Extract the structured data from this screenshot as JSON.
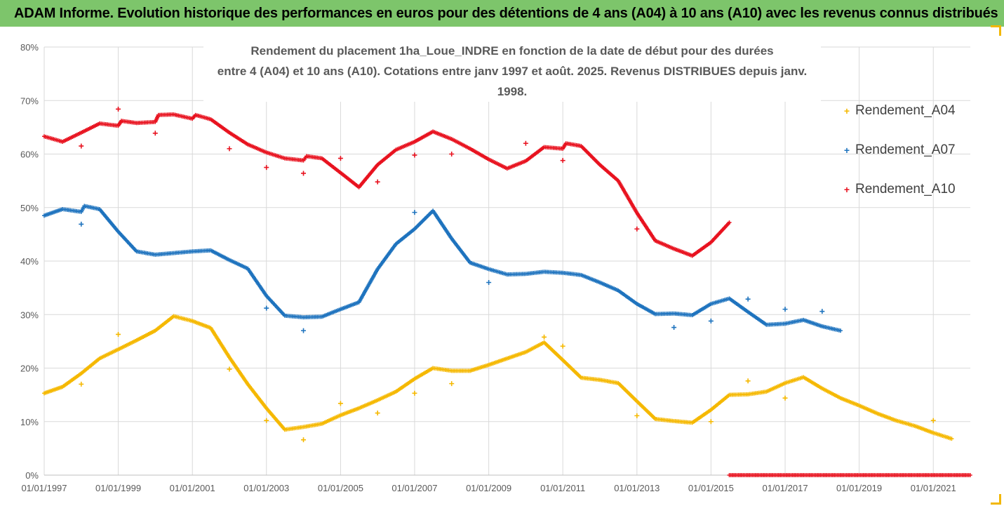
{
  "banner": {
    "title": "ADAM Informe. Evolution historique des performances en euros pour des détentions de 4 ans (A04) à 10 ans (A10) avec les revenus connus distribués"
  },
  "colors": {
    "banner_bg": "#7dc56b",
    "corner": "#f2b705",
    "A04": "#f5b800",
    "A07": "#1e73be",
    "A10": "#e8121f",
    "grid": "#d9d9d9"
  },
  "chart_data": {
    "type": "scatter",
    "title_line1": "Rendement du placement 1ha_Loue_INDRE en fonction de la date de début pour des durées",
    "title_line2": "entre 4 (A04) et 10 ans (A10). Cotations entre janv 1997 et août. 2025. Revenus DISTRIBUES depuis janv. 1998.",
    "xlabel": "",
    "ylabel": "",
    "x_range": [
      "1997-01-01",
      "2022-01-01"
    ],
    "y_range": [
      0,
      80
    ],
    "y_ticks": [
      0,
      10,
      20,
      30,
      40,
      50,
      60,
      70,
      80
    ],
    "y_tick_labels": [
      "0%",
      "10%",
      "20%",
      "30%",
      "40%",
      "50%",
      "60%",
      "70%",
      "80%"
    ],
    "x_ticks": [
      "1997-01-01",
      "1999-01-01",
      "2001-01-01",
      "2003-01-01",
      "2005-01-01",
      "2007-01-01",
      "2009-01-01",
      "2011-01-01",
      "2013-01-01",
      "2015-01-01",
      "2017-01-01",
      "2019-01-01",
      "2021-01-01"
    ],
    "x_tick_labels": [
      "01/01/1997",
      "01/01/1999",
      "01/01/2001",
      "01/01/2003",
      "01/01/2005",
      "01/01/2007",
      "01/01/2009",
      "01/01/2011",
      "01/01/2013",
      "01/01/2015",
      "01/01/2017",
      "01/01/2019",
      "01/01/2021"
    ],
    "grid": "horizontal",
    "legend_position": "right",
    "series": [
      {
        "name": "Rendement_A04",
        "color": "#f5b800",
        "points": [
          [
            "1997-01-01",
            15.3
          ],
          [
            "1997-07-01",
            16.5
          ],
          [
            "1998-01-01",
            19.0
          ],
          [
            "1998-07-01",
            21.8
          ],
          [
            "1999-01-01",
            23.5
          ],
          [
            "1999-07-01",
            25.2
          ],
          [
            "2000-01-01",
            27.0
          ],
          [
            "2000-07-01",
            29.7
          ],
          [
            "2001-01-01",
            28.8
          ],
          [
            "2001-07-01",
            27.5
          ],
          [
            "2002-01-01",
            22.0
          ],
          [
            "2002-07-01",
            17.0
          ],
          [
            "2003-01-01",
            12.5
          ],
          [
            "2003-07-01",
            8.5
          ],
          [
            "2004-01-01",
            9.0
          ],
          [
            "2004-07-01",
            9.6
          ],
          [
            "2005-01-01",
            11.2
          ],
          [
            "2005-07-01",
            12.5
          ],
          [
            "2006-01-01",
            14.0
          ],
          [
            "2006-07-01",
            15.6
          ],
          [
            "2007-01-01",
            18.0
          ],
          [
            "2007-07-01",
            20.0
          ],
          [
            "2008-01-01",
            19.5
          ],
          [
            "2008-07-01",
            19.5
          ],
          [
            "2009-01-01",
            20.6
          ],
          [
            "2009-07-01",
            21.8
          ],
          [
            "2010-01-01",
            23.0
          ],
          [
            "2010-07-01",
            24.8
          ],
          [
            "2011-01-01",
            21.5
          ],
          [
            "2011-07-01",
            18.2
          ],
          [
            "2012-01-01",
            17.8
          ],
          [
            "2012-07-01",
            17.2
          ],
          [
            "2013-01-01",
            13.8
          ],
          [
            "2013-07-01",
            10.5
          ],
          [
            "2014-01-01",
            10.1
          ],
          [
            "2014-07-01",
            9.8
          ],
          [
            "2015-01-01",
            12.2
          ],
          [
            "2015-07-01",
            15.0
          ],
          [
            "2016-01-01",
            15.1
          ],
          [
            "2016-07-01",
            15.6
          ],
          [
            "2017-01-01",
            17.2
          ],
          [
            "2017-07-01",
            18.3
          ],
          [
            "2018-01-01",
            16.2
          ],
          [
            "2018-07-01",
            14.4
          ],
          [
            "2019-01-01",
            13.0
          ],
          [
            "2019-07-01",
            11.5
          ],
          [
            "2020-01-01",
            10.2
          ],
          [
            "2020-07-01",
            9.2
          ],
          [
            "2021-01-01",
            7.9
          ],
          [
            "2021-07-01",
            6.8
          ]
        ],
        "outliers": [
          [
            "1998-01-01",
            17.0
          ],
          [
            "1999-01-01",
            26.3
          ],
          [
            "2002-01-01",
            19.8
          ],
          [
            "2003-01-01",
            10.2
          ],
          [
            "2004-01-01",
            6.6
          ],
          [
            "2005-01-01",
            13.4
          ],
          [
            "2006-01-01",
            11.6
          ],
          [
            "2007-01-01",
            15.3
          ],
          [
            "2008-01-01",
            17.1
          ],
          [
            "2010-07-01",
            25.8
          ],
          [
            "2011-01-01",
            24.1
          ],
          [
            "2013-01-01",
            11.1
          ],
          [
            "2015-01-01",
            10.0
          ],
          [
            "2016-01-01",
            17.6
          ],
          [
            "2017-01-01",
            14.4
          ],
          [
            "2021-01-01",
            10.2
          ]
        ]
      },
      {
        "name": "Rendement_A07",
        "color": "#1e73be",
        "points": [
          [
            "1997-01-01",
            48.5
          ],
          [
            "1997-07-01",
            49.7
          ],
          [
            "1998-01-01",
            49.2
          ],
          [
            "1998-02-01",
            50.3
          ],
          [
            "1998-07-01",
            49.7
          ],
          [
            "1999-01-01",
            45.5
          ],
          [
            "1999-07-01",
            41.8
          ],
          [
            "2000-01-01",
            41.2
          ],
          [
            "2000-07-01",
            41.5
          ],
          [
            "2001-01-01",
            41.8
          ],
          [
            "2001-07-01",
            42.0
          ],
          [
            "2002-01-01",
            40.2
          ],
          [
            "2002-07-01",
            38.6
          ],
          [
            "2003-01-01",
            33.5
          ],
          [
            "2003-07-01",
            29.8
          ],
          [
            "2004-01-01",
            29.5
          ],
          [
            "2004-07-01",
            29.6
          ],
          [
            "2005-01-01",
            31.0
          ],
          [
            "2005-07-01",
            32.3
          ],
          [
            "2006-01-01",
            38.5
          ],
          [
            "2006-07-01",
            43.2
          ],
          [
            "2007-01-01",
            46.0
          ],
          [
            "2007-07-01",
            49.4
          ],
          [
            "2008-01-01",
            44.2
          ],
          [
            "2008-07-01",
            39.7
          ],
          [
            "2009-01-01",
            38.5
          ],
          [
            "2009-07-01",
            37.5
          ],
          [
            "2010-01-01",
            37.6
          ],
          [
            "2010-07-01",
            38.0
          ],
          [
            "2011-01-01",
            37.8
          ],
          [
            "2011-07-01",
            37.4
          ],
          [
            "2012-01-01",
            36.0
          ],
          [
            "2012-07-01",
            34.5
          ],
          [
            "2013-01-01",
            32.0
          ],
          [
            "2013-07-01",
            30.1
          ],
          [
            "2014-01-01",
            30.2
          ],
          [
            "2014-07-01",
            29.9
          ],
          [
            "2015-01-01",
            32.0
          ],
          [
            "2015-07-01",
            33.0
          ],
          [
            "2016-01-01",
            30.5
          ],
          [
            "2016-07-01",
            28.1
          ],
          [
            "2017-01-01",
            28.3
          ],
          [
            "2017-07-01",
            29.0
          ],
          [
            "2018-01-01",
            27.8
          ],
          [
            "2018-07-01",
            27.0
          ]
        ],
        "outliers": [
          [
            "1998-01-01",
            46.9
          ],
          [
            "2003-01-01",
            31.2
          ],
          [
            "2004-01-01",
            27.0
          ],
          [
            "2007-01-01",
            49.1
          ],
          [
            "2009-01-01",
            36.0
          ],
          [
            "2014-01-01",
            27.6
          ],
          [
            "2015-01-01",
            28.8
          ],
          [
            "2016-01-01",
            32.9
          ],
          [
            "2017-01-01",
            31.0
          ],
          [
            "2018-01-01",
            30.6
          ]
        ]
      },
      {
        "name": "Rendement_A10",
        "color": "#e8121f",
        "points": [
          [
            "1997-01-01",
            63.3
          ],
          [
            "1997-07-01",
            62.3
          ],
          [
            "1998-01-01",
            64.0
          ],
          [
            "1998-07-01",
            65.7
          ],
          [
            "1999-01-01",
            65.3
          ],
          [
            "1999-02-01",
            66.2
          ],
          [
            "1999-07-01",
            65.8
          ],
          [
            "2000-01-01",
            66.0
          ],
          [
            "2000-02-01",
            67.3
          ],
          [
            "2000-07-01",
            67.4
          ],
          [
            "2001-01-01",
            66.6
          ],
          [
            "2001-02-01",
            67.3
          ],
          [
            "2001-07-01",
            66.5
          ],
          [
            "2002-01-01",
            64.0
          ],
          [
            "2002-07-01",
            61.8
          ],
          [
            "2003-01-01",
            60.3
          ],
          [
            "2003-07-01",
            59.2
          ],
          [
            "2004-01-01",
            58.8
          ],
          [
            "2004-02-01",
            59.6
          ],
          [
            "2004-07-01",
            59.2
          ],
          [
            "2005-01-01",
            56.5
          ],
          [
            "2005-07-01",
            53.8
          ],
          [
            "2006-01-01",
            58.0
          ],
          [
            "2006-07-01",
            60.8
          ],
          [
            "2007-01-01",
            62.3
          ],
          [
            "2007-07-01",
            64.2
          ],
          [
            "2008-01-01",
            62.8
          ],
          [
            "2008-07-01",
            61.0
          ],
          [
            "2009-01-01",
            59.0
          ],
          [
            "2009-07-01",
            57.3
          ],
          [
            "2010-01-01",
            58.7
          ],
          [
            "2010-07-01",
            61.3
          ],
          [
            "2011-01-01",
            61.0
          ],
          [
            "2011-02-01",
            62.0
          ],
          [
            "2011-07-01",
            61.5
          ],
          [
            "2012-01-01",
            58.0
          ],
          [
            "2012-07-01",
            55.0
          ],
          [
            "2013-01-01",
            49.0
          ],
          [
            "2013-07-01",
            43.8
          ],
          [
            "2014-01-01",
            42.3
          ],
          [
            "2014-07-01",
            41.0
          ],
          [
            "2015-01-01",
            43.5
          ],
          [
            "2015-07-01",
            47.2
          ]
        ],
        "outliers": [
          [
            "1998-01-01",
            61.5
          ],
          [
            "1999-01-01",
            68.4
          ],
          [
            "2000-01-01",
            63.9
          ],
          [
            "2002-01-01",
            61.0
          ],
          [
            "2003-01-01",
            57.5
          ],
          [
            "2004-01-01",
            56.4
          ],
          [
            "2005-01-01",
            59.2
          ],
          [
            "2006-01-01",
            54.8
          ],
          [
            "2007-01-01",
            59.8
          ],
          [
            "2008-01-01",
            60.0
          ],
          [
            "2010-01-01",
            62.0
          ],
          [
            "2011-01-01",
            58.8
          ],
          [
            "2013-01-01",
            46.0
          ]
        ],
        "zero_range": [
          "2015-07-01",
          "2022-01-01",
          0
        ]
      }
    ]
  }
}
